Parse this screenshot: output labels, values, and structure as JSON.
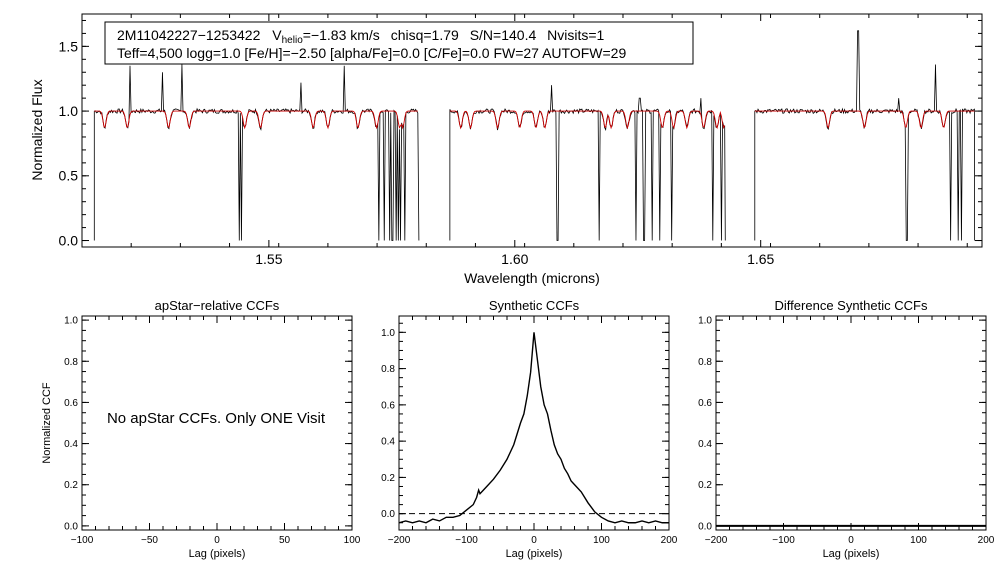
{
  "spectrum_panel": {
    "title_box": {
      "star_id": "2M11042227−1253422",
      "v_symbol": "V",
      "v_subscript": "helio",
      "v_value": "=−1.83 km/s",
      "chisq": "chisq=1.79",
      "snr": "S/N=140.4",
      "nvisits": "Nvisits=1",
      "line2": "Teff=4,500 logg=1.0 [Fe/H]=−2.50 [alpha/Fe]=0.0 [C/Fe]=0.0 FW=27 AUTOFW=29"
    }
  },
  "ccf_panels": {
    "left_title": "apStar−relative CCFs",
    "middle_title": "Synthetic CCFs",
    "right_title": "Difference Synthetic CCFs",
    "ylabel": "Normalized CCF",
    "no_data_message": "No apStar CCFs.  Only ONE Visit"
  },
  "colors": {
    "observed": "#000000",
    "model": "#cc0000",
    "axes": "#000000"
  },
  "chart_data": [
    {
      "type": "line",
      "name": "spectrum",
      "xlabel": "Wavelength (microns)",
      "ylabel": "Normalized Flux",
      "xlim": [
        1.512,
        1.695
      ],
      "ylim": [
        -0.05,
        1.75
      ],
      "xticks": [
        1.55,
        1.6,
        1.65
      ],
      "xtick_labels": [
        "1.55",
        "1.60",
        "1.65"
      ],
      "yticks": [
        0.0,
        0.5,
        1.0,
        1.5
      ],
      "ytick_labels": [
        "0.0",
        "0.5",
        "1.0",
        "1.5"
      ],
      "chip_ranges": [
        [
          1.5145,
          1.5805
        ],
        [
          1.5868,
          1.6428
        ],
        [
          1.6488,
          1.6935
        ]
      ],
      "continuum": 1.0,
      "absorption_lines": [
        1.5166,
        1.5212,
        1.5296,
        1.5338,
        1.5451,
        1.5483,
        1.559,
        1.562,
        1.5681,
        1.5719,
        1.5766,
        1.5772,
        1.589,
        1.591,
        1.5965,
        1.601,
        1.6043,
        1.6061,
        1.6184,
        1.6196,
        1.6229,
        1.63,
        1.6323,
        1.635,
        1.6384,
        1.6411,
        1.6425,
        1.6637,
        1.6711,
        1.6795,
        1.6826,
        1.6872
      ],
      "emission_spikes": [
        {
          "x": 1.5218,
          "y": 1.35
        },
        {
          "x": 1.5284,
          "y": 1.3
        },
        {
          "x": 1.5323,
          "y": 1.36
        },
        {
          "x": 1.5565,
          "y": 1.22
        },
        {
          "x": 1.5654,
          "y": 1.35
        },
        {
          "x": 1.6074,
          "y": 1.2
        },
        {
          "x": 1.6254,
          "y": 1.1
        },
        {
          "x": 1.6378,
          "y": 1.1
        },
        {
          "x": 1.6698,
          "y": 1.62
        },
        {
          "x": 1.6855,
          "y": 1.36
        },
        {
          "x": 1.678,
          "y": 1.1
        }
      ],
      "bad_pixel_dropouts": [
        1.544,
        1.5444,
        1.5723,
        1.5735,
        1.5745,
        1.5751,
        1.5758,
        1.5763,
        1.5767,
        1.5777,
        1.6087,
        1.6172,
        1.6247,
        1.6263,
        1.6279,
        1.6294,
        1.6319,
        1.6402,
        1.642,
        1.6797,
        1.6887,
        1.6902,
        1.6909
      ]
    },
    {
      "type": "line",
      "name": "apStar-relative CCFs",
      "xlabel": "Lag (pixels)",
      "xlim": [
        -100,
        100
      ],
      "ylim": [
        -0.02,
        1.02
      ],
      "xticks": [
        -100,
        -50,
        0,
        50,
        100
      ],
      "xtick_labels": [
        "−100",
        "−50",
        "0",
        "50",
        "100"
      ],
      "yticks": [
        0.0,
        0.2,
        0.4,
        0.6,
        0.8,
        1.0
      ],
      "ytick_labels": [
        "0.0",
        "0.2",
        "0.4",
        "0.6",
        "0.8",
        "1.0"
      ],
      "series": []
    },
    {
      "type": "line",
      "name": "Synthetic CCFs",
      "xlabel": "Lag (pixels)",
      "xlim": [
        -200,
        200
      ],
      "ylim": [
        -0.09,
        1.09
      ],
      "xticks": [
        -200,
        -100,
        0,
        100,
        200
      ],
      "xtick_labels": [
        "−200",
        "−100",
        "0",
        "100",
        "200"
      ],
      "yticks": [
        0.0,
        0.2,
        0.4,
        0.6,
        0.8,
        1.0
      ],
      "ytick_labels": [
        "0.0",
        "0.2",
        "0.4",
        "0.6",
        "0.8",
        "1.0"
      ],
      "zero_line": 0.0,
      "series": [
        {
          "name": "synthetic ccf",
          "x": [
            -200,
            -190,
            -180,
            -170,
            -160,
            -150,
            -140,
            -130,
            -120,
            -110,
            -100,
            -90,
            -85,
            -82,
            -80,
            -75,
            -70,
            -60,
            -50,
            -40,
            -30,
            -25,
            -20,
            -15,
            -10,
            -5,
            0,
            5,
            10,
            15,
            20,
            25,
            30,
            35,
            40,
            45,
            50,
            55,
            60,
            70,
            80,
            90,
            100,
            110,
            120,
            130,
            140,
            150,
            160,
            170,
            180,
            190,
            200
          ],
          "values": [
            -0.05,
            -0.04,
            -0.05,
            -0.04,
            -0.05,
            -0.03,
            -0.04,
            -0.02,
            -0.02,
            -0.01,
            0.02,
            0.05,
            0.09,
            0.13,
            0.11,
            0.13,
            0.15,
            0.19,
            0.24,
            0.3,
            0.38,
            0.44,
            0.5,
            0.55,
            0.65,
            0.78,
            1.0,
            0.85,
            0.7,
            0.6,
            0.55,
            0.46,
            0.38,
            0.33,
            0.3,
            0.25,
            0.22,
            0.18,
            0.16,
            0.12,
            0.06,
            0.01,
            -0.02,
            -0.04,
            -0.05,
            -0.04,
            -0.05,
            -0.05,
            -0.04,
            -0.05,
            -0.04,
            -0.05,
            -0.05
          ]
        }
      ]
    },
    {
      "type": "line",
      "name": "Difference Synthetic CCFs",
      "xlabel": "Lag (pixels)",
      "xlim": [
        -200,
        200
      ],
      "ylim": [
        -0.02,
        1.02
      ],
      "xticks": [
        -200,
        -100,
        0,
        100,
        200
      ],
      "xtick_labels": [
        "−200",
        "−100",
        "0",
        "100",
        "200"
      ],
      "yticks": [
        0.0,
        0.2,
        0.4,
        0.6,
        0.8,
        1.0
      ],
      "ytick_labels": [
        "0.0",
        "0.2",
        "0.4",
        "0.6",
        "0.8",
        "1.0"
      ],
      "series": [
        {
          "name": "difference ccf",
          "x": [
            -200,
            200
          ],
          "values": [
            0.0,
            0.0
          ]
        }
      ]
    }
  ]
}
